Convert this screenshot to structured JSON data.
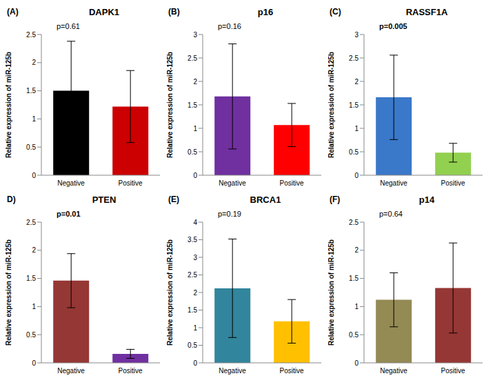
{
  "chart_data": [
    {
      "type": "bar",
      "panel_label": "(A)",
      "title": "DAPK1",
      "ylabel": "Relative expression of miR-125b",
      "annotation": "p=0.61",
      "p_value": 0.61,
      "categories": [
        "Negative",
        "Positive"
      ],
      "values": [
        1.5,
        1.22
      ],
      "errors": [
        0.88,
        0.64
      ],
      "colors": [
        "#000000",
        "#cc0000"
      ],
      "ylim": [
        0,
        2.5
      ],
      "yticks": [
        0,
        0.5,
        1,
        1.5,
        2,
        2.5
      ]
    },
    {
      "type": "bar",
      "panel_label": "(B)",
      "title": "p16",
      "ylabel": "Relative expression of miR-125b",
      "annotation": "p=0.16",
      "p_value": 0.16,
      "categories": [
        "Negative",
        "Positive"
      ],
      "values": [
        1.68,
        1.07
      ],
      "errors": [
        1.12,
        0.46
      ],
      "colors": [
        "#7030a0",
        "#ff0000"
      ],
      "ylim": [
        0,
        3
      ],
      "yticks": [
        0,
        0.5,
        1,
        1.5,
        2,
        2.5,
        3
      ]
    },
    {
      "type": "bar",
      "panel_label": "(C)",
      "title": "RASSF1A",
      "ylabel": "Relative expression of miR-125b",
      "annotation": "p=0.005",
      "p_value": 0.005,
      "categories": [
        "Negative",
        "Positive"
      ],
      "values": [
        1.66,
        0.48
      ],
      "errors": [
        0.9,
        0.2
      ],
      "colors": [
        "#3a78c9",
        "#92d050"
      ],
      "ylim": [
        0,
        3
      ],
      "yticks": [
        0,
        0.5,
        1,
        1.5,
        2,
        2.5,
        3
      ]
    },
    {
      "type": "bar",
      "panel_label": "D)",
      "title": "PTEN",
      "ylabel": "Relative expression of miR-125b",
      "annotation": "p=0.01",
      "p_value": 0.01,
      "categories": [
        "Negative",
        "Positive"
      ],
      "values": [
        1.46,
        0.16
      ],
      "errors": [
        0.48,
        0.08
      ],
      "colors": [
        "#953735",
        "#7030a0"
      ],
      "ylim": [
        0,
        2.5
      ],
      "yticks": [
        0,
        0.5,
        1,
        1.5,
        2,
        2.5
      ]
    },
    {
      "type": "bar",
      "panel_label": "(E)",
      "title": "BRCA1",
      "ylabel": "Relative expression of miR-125b",
      "annotation": "p=0.19",
      "p_value": 0.19,
      "categories": [
        "Negative",
        "Positive"
      ],
      "values": [
        2.12,
        1.18
      ],
      "errors": [
        1.4,
        0.62
      ],
      "colors": [
        "#31859c",
        "#ffc000"
      ],
      "ylim": [
        0,
        4
      ],
      "yticks": [
        0,
        0.5,
        1,
        1.5,
        2,
        2.5,
        3,
        3.5,
        4
      ]
    },
    {
      "type": "bar",
      "panel_label": "(F)",
      "title": "p14",
      "ylabel": "Relative expression of miR-125b",
      "annotation": "p=0.64",
      "p_value": 0.64,
      "categories": [
        "Negative",
        "Positive"
      ],
      "values": [
        1.12,
        1.33
      ],
      "errors": [
        0.48,
        0.8
      ],
      "colors": [
        "#948a54",
        "#953735"
      ],
      "ylim": [
        0,
        2.5
      ],
      "yticks": [
        0,
        0.5,
        1,
        1.5,
        2,
        2.5
      ]
    }
  ]
}
